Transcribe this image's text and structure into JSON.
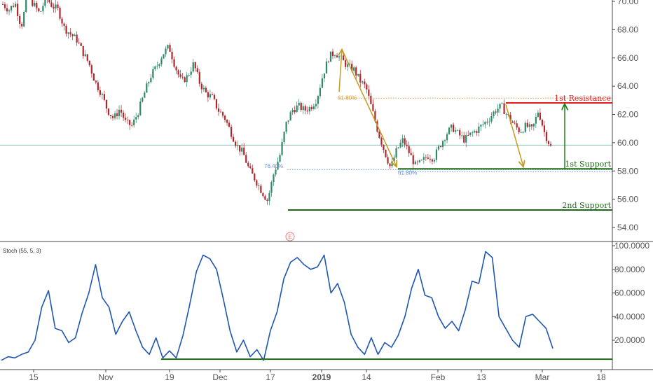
{
  "chart_data": [
    {
      "type": "candlestick",
      "x_ticks": [
        "15",
        "Nov",
        "19",
        "Dec",
        "17",
        "2019",
        "14",
        "Feb",
        "13",
        "Mar",
        "18"
      ],
      "y_ticks": [
        "70.00",
        "68.00",
        "66.00",
        "64.00",
        "62.00",
        "60.00",
        "58.00",
        "56.00",
        "54.00"
      ],
      "ylim": [
        53.2,
        70.2
      ],
      "price_path": [
        69.8,
        69.4,
        69.9,
        68.2,
        70.4,
        69.8,
        69.1,
        70.3,
        69.7,
        69.4,
        68.1,
        67.7,
        67.3,
        66.4,
        65.6,
        64.3,
        63.5,
        62.3,
        61.7,
        62.4,
        61.4,
        61.2,
        62.2,
        63.5,
        64.7,
        65.4,
        66.3,
        66.8,
        65.4,
        64.3,
        64.7,
        65.6,
        64.2,
        63.5,
        63.2,
        62.3,
        61.8,
        60.8,
        59.8,
        59.3,
        58.1,
        57.4,
        56.6,
        55.9,
        57.8,
        59.1,
        61.3,
        62.3,
        62.6,
        62.3,
        62.5,
        63.1,
        64.8,
        66.1,
        66.4,
        65.9,
        65.4,
        65.2,
        64.4,
        63.9,
        62.3,
        60.7,
        59.4,
        58.2,
        59.5,
        60.2,
        59.3,
        58.4,
        58.6,
        59.1,
        58.9,
        59.8,
        60.6,
        61.1,
        60.6,
        60.2,
        60.6,
        60.9,
        61.3,
        61.7,
        62.3,
        62.6,
        61.9,
        61.3,
        60.8,
        61.2,
        60.9,
        62.3,
        60.7,
        59.7
      ],
      "levels": [
        {
          "label": "1st Resistance",
          "value": "62.82",
          "color": "#e41c1c"
        },
        {
          "label": "1st Support",
          "value": "58.15",
          "color": "#1e6b17"
        },
        {
          "label": "2nd Support",
          "value": "55.24",
          "color": "#1e6b17"
        }
      ],
      "price_tags": [
        {
          "value": "59.83",
          "color": "#e15656"
        },
        {
          "value": "59.83",
          "color": "#5b9d6e"
        }
      ],
      "fib_labels": [
        "61.80%",
        "76.40%",
        "61.80%"
      ],
      "event_marker": "E"
    },
    {
      "type": "line",
      "title": "Stoch (55, 5, 3)",
      "y_ticks": [
        "100.0000",
        "80.0000",
        "60.0000",
        "40.0000",
        "20.0000"
      ],
      "ylim": [
        0,
        100
      ],
      "values": [
        3,
        6,
        5,
        8,
        10,
        20,
        48,
        62,
        30,
        28,
        18,
        22,
        43,
        60,
        84,
        56,
        48,
        25,
        36,
        44,
        28,
        14,
        8,
        22,
        5,
        11,
        5,
        24,
        50,
        78,
        92,
        89,
        80,
        55,
        28,
        10,
        20,
        6,
        12,
        3,
        28,
        44,
        72,
        86,
        90,
        84,
        80,
        82,
        92,
        60,
        68,
        52,
        25,
        14,
        8,
        22,
        8,
        18,
        14,
        24,
        40,
        64,
        80,
        58,
        56,
        40,
        30,
        36,
        28,
        46,
        70,
        68,
        95,
        90,
        40,
        30,
        20,
        14,
        40,
        42,
        36,
        30,
        13
      ],
      "levels": [
        {
          "value": "3.9508",
          "color": "#1e6b17"
        }
      ]
    }
  ]
}
